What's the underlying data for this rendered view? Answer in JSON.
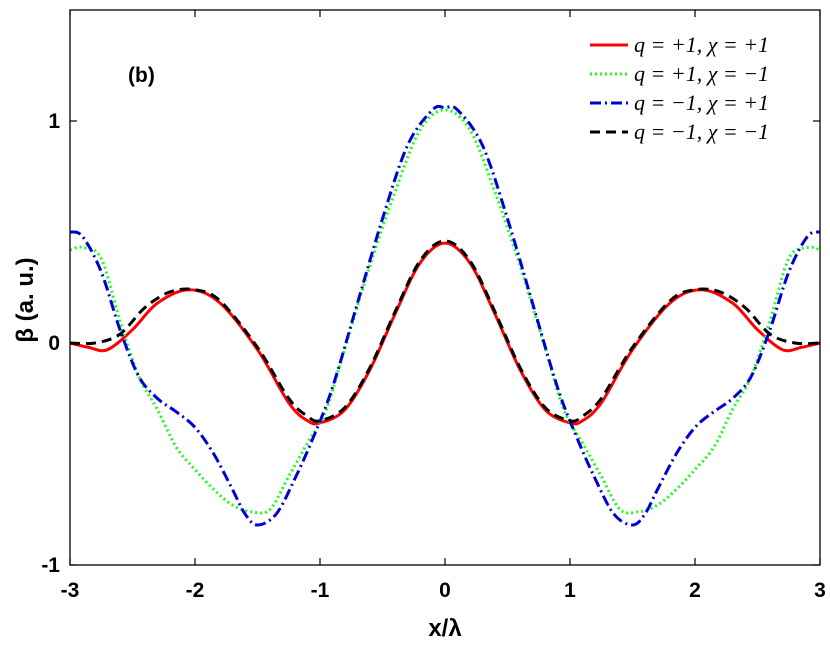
{
  "chart_data": {
    "type": "line",
    "panel_label": "(b)",
    "xlabel": "x/λ",
    "ylabel": "β (a. u.)",
    "xlim": [
      -3,
      3
    ],
    "ylim": [
      -1,
      1.5
    ],
    "x_ticks": [
      -3,
      -2,
      -1,
      0,
      1,
      2,
      3
    ],
    "x_tick_labels": [
      "-3",
      "-2",
      "-1",
      "0",
      "1",
      "2",
      "3"
    ],
    "y_ticks": [
      -1,
      0,
      1
    ],
    "y_tick_labels": [
      "-1",
      "0",
      "1"
    ],
    "legend_position": "top-right",
    "grid": false,
    "series": [
      {
        "name": "q = +1, χ = +1",
        "color": "#ff0000",
        "style": "solid",
        "x": [
          -3.0,
          -2.85,
          -2.7,
          -2.5,
          -2.3,
          -2.05,
          -1.8,
          -1.5,
          -1.25,
          -1.1,
          -1.0,
          -0.8,
          -0.6,
          -0.4,
          -0.2,
          0.0,
          0.2,
          0.4,
          0.6,
          0.8,
          1.0,
          1.1,
          1.25,
          1.5,
          1.8,
          2.05,
          2.3,
          2.5,
          2.7,
          2.85,
          3.0
        ],
        "y": [
          0.0,
          -0.02,
          -0.03,
          0.06,
          0.18,
          0.24,
          0.18,
          -0.03,
          -0.27,
          -0.35,
          -0.36,
          -0.3,
          -0.12,
          0.13,
          0.36,
          0.45,
          0.36,
          0.13,
          -0.12,
          -0.3,
          -0.36,
          -0.35,
          -0.27,
          -0.03,
          0.18,
          0.24,
          0.18,
          0.06,
          -0.03,
          -0.02,
          0.0
        ]
      },
      {
        "name": "q = +1, χ = −1",
        "color": "#1aff1a",
        "style": "dotted",
        "x": [
          -3.0,
          -2.9,
          -2.75,
          -2.6,
          -2.45,
          -2.3,
          -2.15,
          -2.0,
          -1.85,
          -1.7,
          -1.55,
          -1.4,
          -1.25,
          -1.1,
          -0.95,
          -0.8,
          -0.6,
          -0.4,
          -0.2,
          0.0,
          0.2,
          0.4,
          0.6,
          0.8,
          0.95,
          1.1,
          1.25,
          1.4,
          1.55,
          1.7,
          1.85,
          2.0,
          2.15,
          2.3,
          2.45,
          2.6,
          2.75,
          2.9,
          3.0
        ],
        "y": [
          0.42,
          0.43,
          0.38,
          0.1,
          -0.15,
          -0.3,
          -0.47,
          -0.57,
          -0.66,
          -0.73,
          -0.76,
          -0.75,
          -0.6,
          -0.45,
          -0.3,
          -0.02,
          0.35,
          0.68,
          0.96,
          1.05,
          0.96,
          0.68,
          0.35,
          -0.02,
          -0.3,
          -0.45,
          -0.6,
          -0.75,
          -0.76,
          -0.73,
          -0.66,
          -0.57,
          -0.47,
          -0.3,
          -0.15,
          0.1,
          0.38,
          0.43,
          0.42
        ]
      },
      {
        "name": "q = −1, χ = +1",
        "color": "#0000d9",
        "style": "dashdot",
        "x": [
          -3.0,
          -2.9,
          -2.75,
          -2.6,
          -2.45,
          -2.3,
          -2.15,
          -2.0,
          -1.85,
          -1.7,
          -1.6,
          -1.5,
          -1.35,
          -1.2,
          -1.05,
          -0.9,
          -0.7,
          -0.5,
          -0.3,
          -0.1,
          0.0,
          0.1,
          0.3,
          0.5,
          0.7,
          0.9,
          1.05,
          1.2,
          1.35,
          1.5,
          1.6,
          1.7,
          1.85,
          2.0,
          2.15,
          2.3,
          2.45,
          2.6,
          2.75,
          2.9,
          3.0
        ],
        "y": [
          0.5,
          0.48,
          0.32,
          0.06,
          -0.15,
          -0.25,
          -0.31,
          -0.38,
          -0.5,
          -0.66,
          -0.77,
          -0.82,
          -0.77,
          -0.61,
          -0.42,
          -0.2,
          0.18,
          0.56,
          0.89,
          1.05,
          1.06,
          1.05,
          0.89,
          0.56,
          0.18,
          -0.2,
          -0.42,
          -0.61,
          -0.77,
          -0.82,
          -0.77,
          -0.66,
          -0.5,
          -0.38,
          -0.31,
          -0.25,
          -0.15,
          0.06,
          0.32,
          0.48,
          0.5
        ]
      },
      {
        "name": "q = −1, χ = −1",
        "color": "#000000",
        "style": "dashed",
        "x": [
          -3.0,
          -2.8,
          -2.6,
          -2.4,
          -2.2,
          -2.0,
          -1.8,
          -1.5,
          -1.25,
          -1.1,
          -1.0,
          -0.8,
          -0.6,
          -0.4,
          -0.2,
          0.0,
          0.2,
          0.4,
          0.6,
          0.8,
          1.0,
          1.1,
          1.25,
          1.5,
          1.8,
          2.0,
          2.2,
          2.4,
          2.6,
          2.8,
          3.0
        ],
        "y": [
          0.0,
          0.0,
          0.04,
          0.16,
          0.23,
          0.24,
          0.19,
          -0.02,
          -0.25,
          -0.33,
          -0.35,
          -0.29,
          -0.11,
          0.14,
          0.37,
          0.46,
          0.37,
          0.14,
          -0.11,
          -0.29,
          -0.35,
          -0.33,
          -0.25,
          -0.02,
          0.19,
          0.24,
          0.23,
          0.16,
          0.04,
          0.0,
          0.0
        ]
      }
    ]
  }
}
